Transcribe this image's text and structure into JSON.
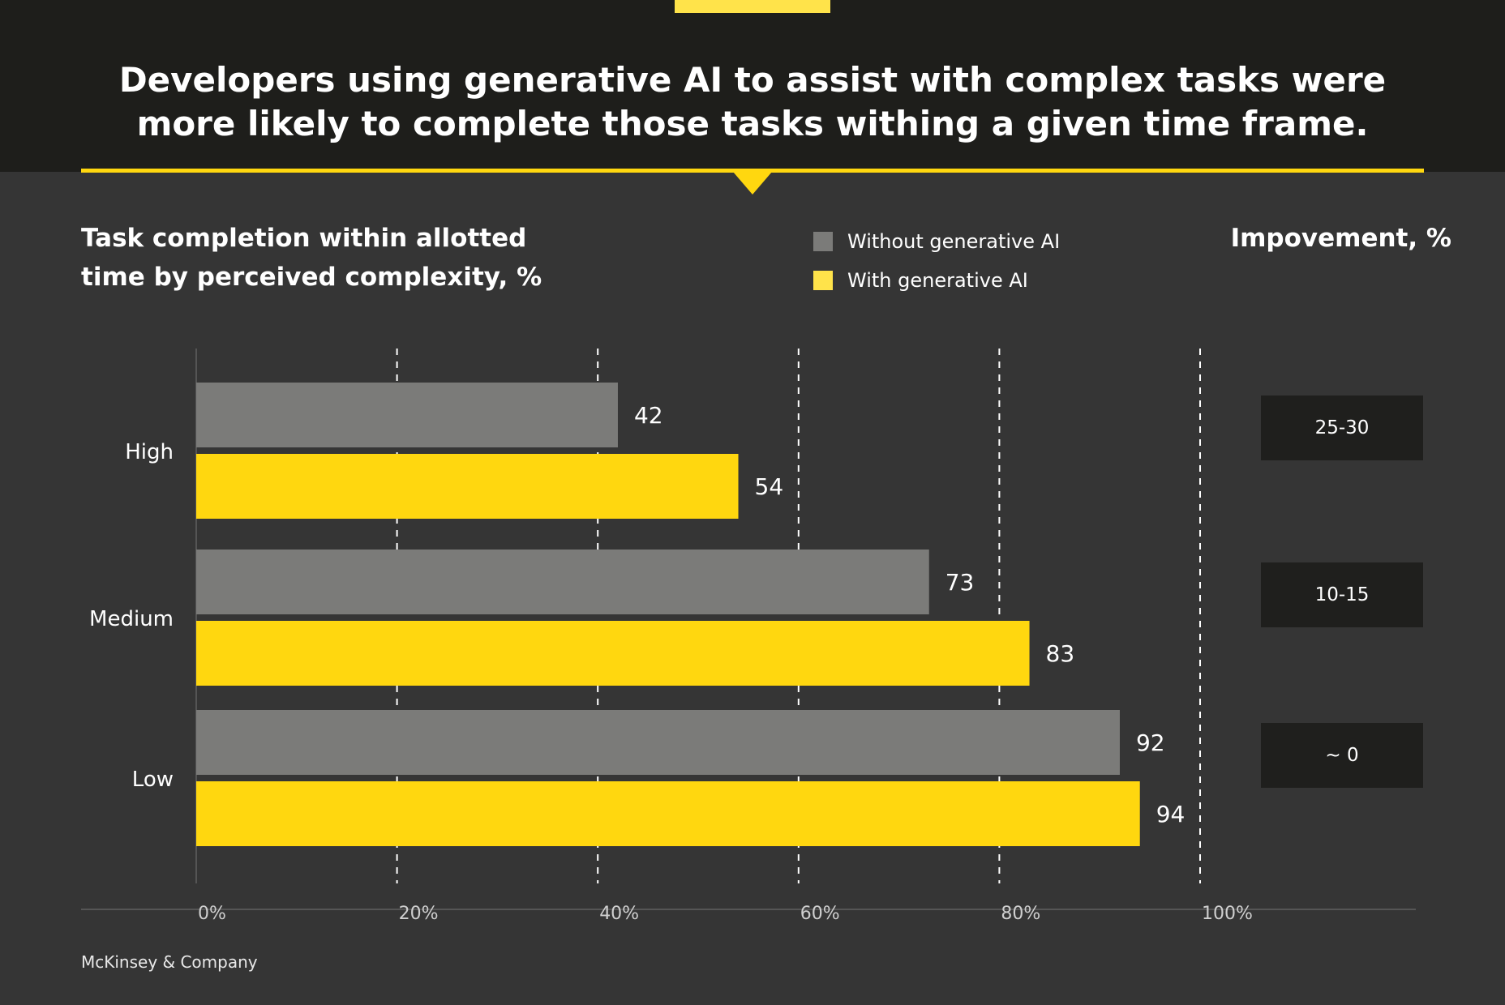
{
  "headline": "Developers using generative AI to assist with complex tasks were more likely to complete those tasks withing a given time frame.",
  "subtitle": "Task completion within allotted time by perceived complexity, %",
  "improvement_title": "Impovement, %",
  "improvements": [
    "25-30",
    "10-15",
    "~ 0"
  ],
  "source": "McKinsey & Company",
  "colors": {
    "without": "#7b7b79",
    "with": "#ffd70f",
    "background": "#353535",
    "header": "#1e1e1b"
  },
  "chart_data": {
    "type": "bar",
    "orientation": "horizontal",
    "categories": [
      "High",
      "Medium",
      "Low"
    ],
    "series": [
      {
        "name": "Without generative AI",
        "values": [
          42,
          73,
          92
        ]
      },
      {
        "name": "With generative AI",
        "values": [
          54,
          83,
          94
        ]
      }
    ],
    "xlim": [
      0,
      100
    ],
    "xticks": [
      "0%",
      "20%",
      "40%",
      "60%",
      "80%",
      "100%"
    ],
    "grid": "vertical dashed",
    "legend": "top-center"
  }
}
